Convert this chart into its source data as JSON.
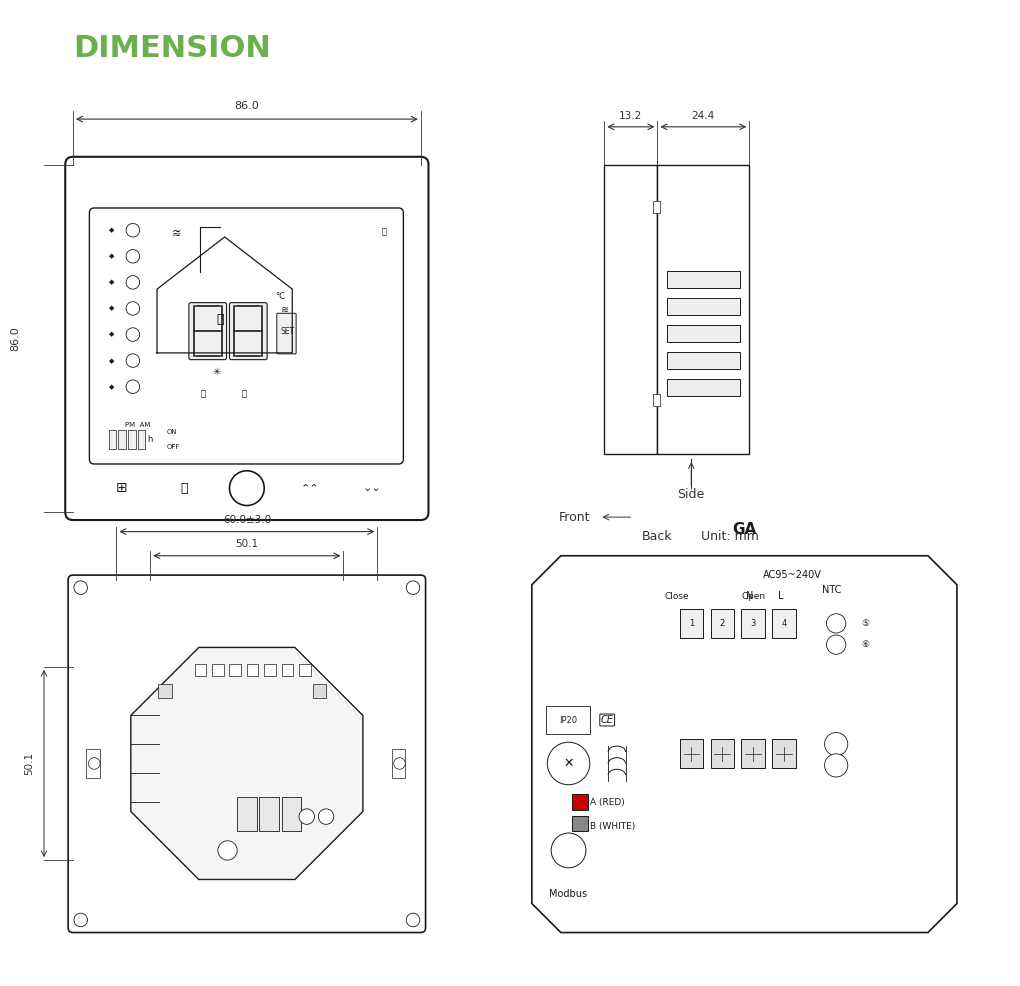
{
  "title": "DIMENSION",
  "title_color": "#6ab04c",
  "title_fontsize": 22,
  "bg_color": "#ffffff",
  "line_color": "#1a1a1a",
  "dim_color": "#333333",
  "label_fontsize": 8.5,
  "dim_fontsize": 8,
  "side_labels": [
    "Side",
    "Front",
    "Back",
    "Unit: mm"
  ],
  "dim_86_label": "86.0",
  "dim_86_side": "86.0",
  "dim_13": "13.2",
  "dim_24": "24.4",
  "dim_60": "60.0±3.0",
  "dim_50": "50.1",
  "dim_50_side": "50.1",
  "ga_label": "GA",
  "ac_label": "AC95~240V",
  "n_label": "N",
  "l_label": "L",
  "ntc_label": "NTC",
  "ip_label": "IP20",
  "close_label": "Close",
  "open_label": "Open",
  "a_label": "A (RED)",
  "b_label": "B (WHITE)",
  "modbus_label": "Modbus"
}
